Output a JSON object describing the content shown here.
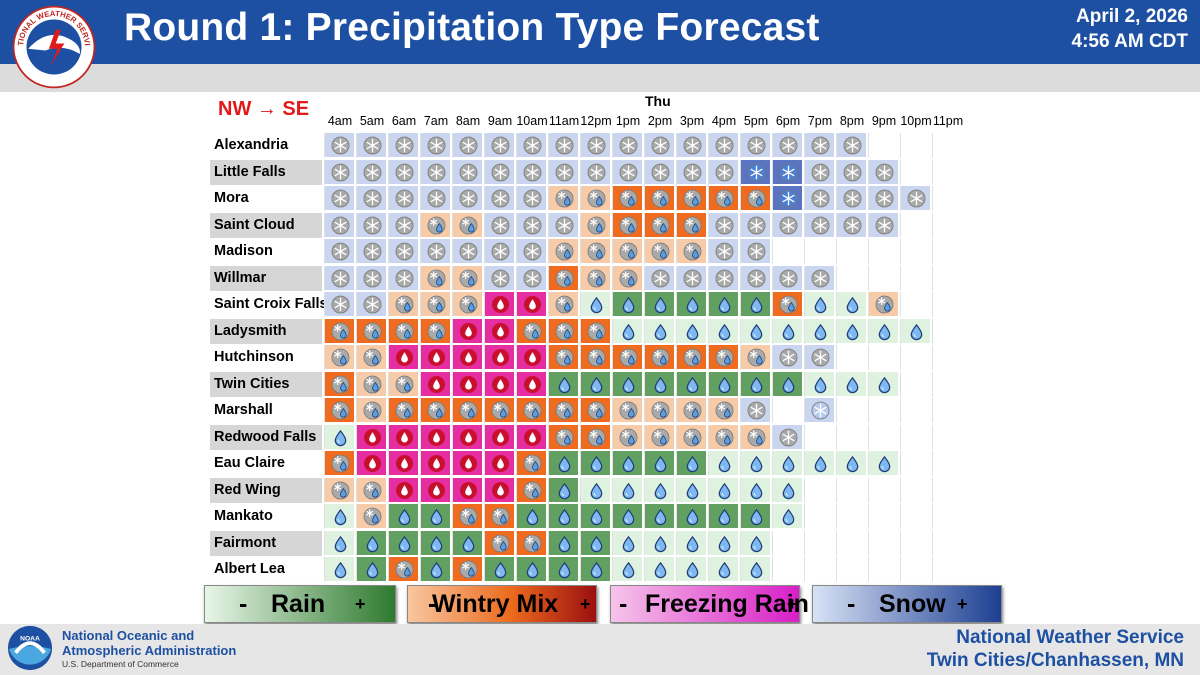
{
  "header": {
    "title": "Round 1: Precipitation Type Forecast",
    "date": "April 2, 2026",
    "time": "4:56 AM CDT",
    "logo_text": "NATIONAL WEATHER SERVICE"
  },
  "table": {
    "direction_label": "NW → SE",
    "day_label": "Thu",
    "hours": [
      "4am",
      "5am",
      "6am",
      "7am",
      "8am",
      "9am",
      "10am",
      "11am",
      "12pm",
      "1pm",
      "2pm",
      "3pm",
      "4pm",
      "5pm",
      "6pm",
      "7pm",
      "8pm",
      "9pm",
      "10pm",
      "11pm"
    ],
    "locations": [
      "Alexandria",
      "Little Falls",
      "Mora",
      "Saint Cloud",
      "Madison",
      "Willmar",
      "Saint Croix Falls",
      "Ladysmith",
      "Hutchinson",
      "Twin Cities",
      "Marshall",
      "Redwood Falls",
      "Eau Claire",
      "Red Wing",
      "Mankato",
      "Fairmont",
      "Albert Lea"
    ],
    "codes_legend": "sl=light snow, sm=moderate snow, sh=heavy snow, wl=light wintry mix, wm=wintry mix, fr=freezing rain, rl=light rain, rm=rain, 0=none",
    "rows": [
      [
        "sl",
        "sl",
        "sl",
        "sl",
        "sl",
        "sl",
        "sl",
        "sl",
        "sl",
        "sl",
        "sl",
        "sl",
        "sl",
        "sl",
        "sl",
        "sl",
        "sl",
        "0",
        "0",
        "0"
      ],
      [
        "sl",
        "sl",
        "sl",
        "sl",
        "sl",
        "sl",
        "sl",
        "sl",
        "sl",
        "sl",
        "sl",
        "sl",
        "sl",
        "sh",
        "sh",
        "sl",
        "sl",
        "sl",
        "0",
        "0"
      ],
      [
        "sl",
        "sl",
        "sl",
        "sl",
        "sl",
        "sl",
        "sl",
        "wl",
        "wl",
        "wm",
        "wm",
        "wm",
        "wm",
        "wm",
        "sh",
        "sl",
        "sl",
        "sl",
        "sl",
        "0"
      ],
      [
        "sl",
        "sl",
        "sl",
        "wl",
        "wl",
        "sl",
        "sl",
        "sl",
        "wl",
        "wm",
        "wm",
        "wm",
        "sl",
        "sl",
        "sl",
        "sl",
        "sl",
        "sl",
        "0",
        "0"
      ],
      [
        "sl",
        "sl",
        "sl",
        "sl",
        "sl",
        "sl",
        "sl",
        "wl",
        "wl",
        "wl",
        "wl",
        "wl",
        "sl",
        "sl",
        "0",
        "0",
        "0",
        "0",
        "0",
        "0"
      ],
      [
        "sl",
        "sl",
        "sl",
        "wl",
        "wl",
        "sl",
        "sl",
        "wm",
        "wl",
        "wl",
        "sl",
        "sl",
        "sl",
        "sl",
        "sl",
        "sl",
        "0",
        "0",
        "0",
        "0"
      ],
      [
        "sl",
        "sl",
        "wl",
        "wl",
        "wl",
        "fr",
        "fr",
        "wl",
        "rl",
        "rm",
        "rm",
        "rm",
        "rm",
        "rm",
        "wm",
        "rl",
        "rl",
        "wl",
        "0",
        "0"
      ],
      [
        "wm",
        "wm",
        "wm",
        "wm",
        "fr",
        "fr",
        "wm",
        "wm",
        "wm",
        "rl",
        "rl",
        "rl",
        "rl",
        "rl",
        "rl",
        "rl",
        "rl",
        "rl",
        "rl",
        "0"
      ],
      [
        "wl",
        "wl",
        "fr",
        "fr",
        "fr",
        "fr",
        "fr",
        "wm",
        "wm",
        "wm",
        "wm",
        "wm",
        "wm",
        "wl",
        "sl",
        "sl",
        "0",
        "0",
        "0",
        "0"
      ],
      [
        "wm",
        "wl",
        "wl",
        "fr",
        "fr",
        "fr",
        "fr",
        "rm",
        "rm",
        "rm",
        "rm",
        "rm",
        "rm",
        "rm",
        "rm",
        "rl",
        "rl",
        "rl",
        "0",
        "0"
      ],
      [
        "wm",
        "wl",
        "wm",
        "wm",
        "wm",
        "wm",
        "wm",
        "wm",
        "wm",
        "wl",
        "wl",
        "wl",
        "wl",
        "sl",
        "0",
        "sm",
        "0",
        "0",
        "0",
        "0"
      ],
      [
        "rl",
        "fr",
        "fr",
        "fr",
        "fr",
        "fr",
        "fr",
        "wm",
        "wm",
        "wl",
        "wl",
        "wl",
        "wl",
        "wl",
        "sl",
        "0",
        "0",
        "0",
        "0",
        "0"
      ],
      [
        "wm",
        "fr",
        "fr",
        "fr",
        "fr",
        "fr",
        "wm",
        "rm",
        "rm",
        "rm",
        "rm",
        "rm",
        "rl",
        "rl",
        "rl",
        "rl",
        "rl",
        "rl",
        "0",
        "0"
      ],
      [
        "wl",
        "wl",
        "fr",
        "fr",
        "fr",
        "fr",
        "wm",
        "rm",
        "rl",
        "rl",
        "rl",
        "rl",
        "rl",
        "rl",
        "rl",
        "0",
        "0",
        "0",
        "0",
        "0"
      ],
      [
        "rl",
        "wl",
        "rm",
        "rm",
        "wm",
        "wm",
        "rm",
        "rm",
        "rm",
        "rm",
        "rm",
        "rm",
        "rm",
        "rm",
        "rl",
        "0",
        "0",
        "0",
        "0",
        "0"
      ],
      [
        "rl",
        "rm",
        "rm",
        "rm",
        "rm",
        "wm",
        "wm",
        "rm",
        "rm",
        "rl",
        "rl",
        "rl",
        "rl",
        "rl",
        "0",
        "0",
        "0",
        "0",
        "0",
        "0"
      ],
      [
        "rl",
        "rm",
        "wm",
        "rm",
        "wm",
        "rm",
        "rm",
        "rm",
        "rm",
        "rl",
        "rl",
        "rl",
        "rl",
        "rl",
        "0",
        "0",
        "0",
        "0",
        "0",
        "0"
      ]
    ]
  },
  "legend": [
    {
      "id": "rain",
      "minus": "-",
      "label": "Rain",
      "plus": "+"
    },
    {
      "id": "wintry",
      "minus": "-",
      "label": "Wintry Mix",
      "plus": "+"
    },
    {
      "id": "freezing",
      "minus": "-",
      "label": "Freezing Rain",
      "plus": "+"
    },
    {
      "id": "snow",
      "minus": "-",
      "label": "Snow",
      "plus": "+"
    }
  ],
  "footer": {
    "noaa_line1": "National Oceanic and",
    "noaa_line2": "Atmospheric Administration",
    "noaa_dept": "U.S. Department of Commerce",
    "office_line1": "National Weather Service",
    "office_line2": "Twin Cities/Chanhassen, MN"
  },
  "colors": {
    "header_blue": "#1d50a2",
    "direction_red": "#e01919",
    "snow_light": "#cad6ef",
    "snow_heavy": "#5a74c2",
    "wintry_light": "#f7cba8",
    "wintry": "#ee6b1f",
    "freezing": "#e62ea3",
    "rain_light": "#dff2df",
    "rain": "#62a062"
  }
}
